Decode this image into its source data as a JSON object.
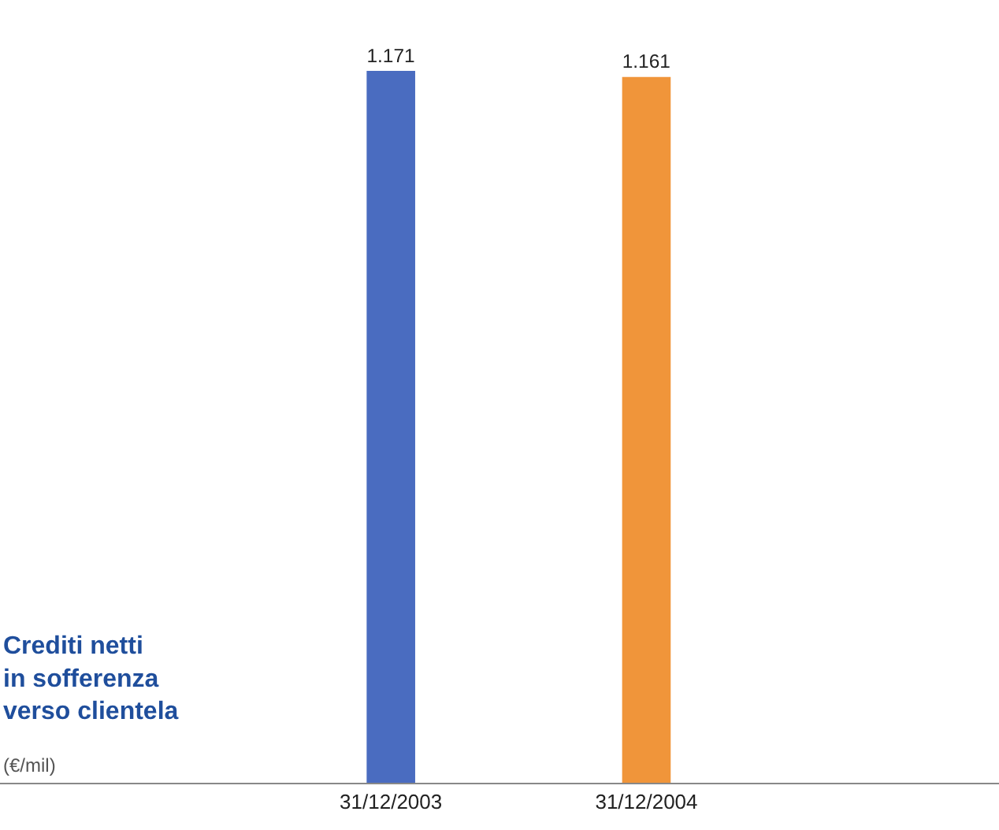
{
  "chart_data": {
    "type": "bar",
    "title": "Crediti netti\nin sofferenza\nverso clientela",
    "subtitle": "(€/mil)",
    "categories": [
      "31/12/2003",
      "31/12/2004"
    ],
    "values": [
      1171,
      1161
    ],
    "colors": [
      "#4a6cc0",
      "#f0953a"
    ],
    "value_labels": [
      "1.171",
      "1.161"
    ],
    "grid": false,
    "legend": false
  }
}
